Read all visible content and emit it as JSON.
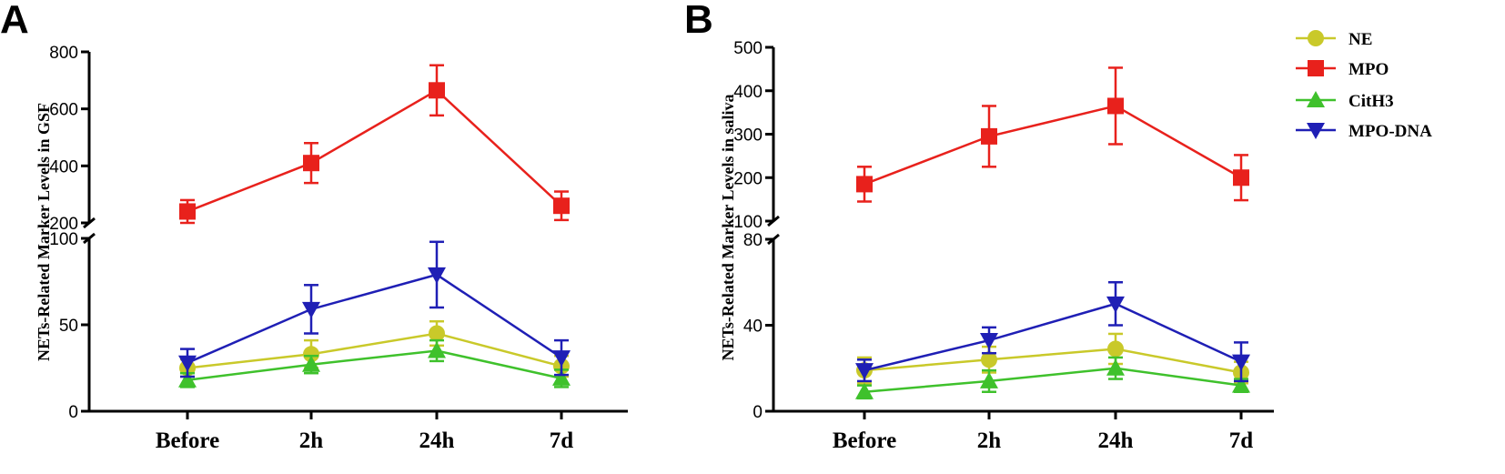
{
  "legend": {
    "items": [
      {
        "label": "NE",
        "marker": "circle",
        "color": "#c9c92a"
      },
      {
        "label": "MPO",
        "marker": "square",
        "color": "#e8211c"
      },
      {
        "label": "CitH3",
        "marker": "triangle-up",
        "color": "#3fc12c"
      },
      {
        "label": "MPO-DNA",
        "marker": "triangle-down",
        "color": "#1f1fb5"
      }
    ]
  },
  "chart_data": [
    {
      "panel": "A",
      "type": "line",
      "ylabel": "NETs-Related Marker  Levels in GSF",
      "categories": [
        "Before",
        "2h",
        "24h",
        "7d"
      ],
      "y_axis_broken": true,
      "lower_ylim": [
        0,
        100
      ],
      "lower_yticks": [
        "0",
        "50",
        "100"
      ],
      "upper_ylim": [
        200,
        800
      ],
      "upper_yticks": [
        "200",
        "400",
        "600",
        "800"
      ],
      "series": [
        {
          "name": "NE",
          "values": [
            25,
            33,
            45,
            26
          ],
          "errors": [
            5,
            8,
            7,
            6
          ]
        },
        {
          "name": "MPO",
          "values": [
            240,
            410,
            665,
            260
          ],
          "errors": [
            40,
            70,
            88,
            50
          ]
        },
        {
          "name": "CitH3",
          "values": [
            18,
            27,
            35,
            19
          ],
          "errors": [
            4,
            5,
            6,
            5
          ]
        },
        {
          "name": "MPO-DNA",
          "values": [
            28,
            59,
            79,
            31
          ],
          "errors": [
            8,
            14,
            19,
            10
          ]
        }
      ]
    },
    {
      "panel": "B",
      "type": "line",
      "ylabel": "NETs-Related Marker Levels in saliva",
      "categories": [
        "Before",
        "2h",
        "24h",
        "7d"
      ],
      "y_axis_broken": true,
      "lower_ylim": [
        0,
        80
      ],
      "lower_yticks": [
        "0",
        "40",
        "80"
      ],
      "upper_ylim": [
        100,
        500
      ],
      "upper_yticks": [
        "100",
        "200",
        "300",
        "400",
        "500"
      ],
      "series": [
        {
          "name": "NE",
          "values": [
            19,
            24,
            29,
            18
          ],
          "errors": [
            6,
            6,
            7,
            5
          ]
        },
        {
          "name": "MPO",
          "values": [
            185,
            295,
            365,
            200
          ],
          "errors": [
            40,
            70,
            88,
            52
          ]
        },
        {
          "name": "CitH3",
          "values": [
            9,
            14,
            20,
            12
          ],
          "errors": [
            3,
            5,
            5,
            3
          ]
        },
        {
          "name": "MPO-DNA",
          "values": [
            19,
            33,
            50,
            23
          ],
          "errors": [
            5,
            6,
            10,
            9
          ]
        }
      ]
    }
  ]
}
